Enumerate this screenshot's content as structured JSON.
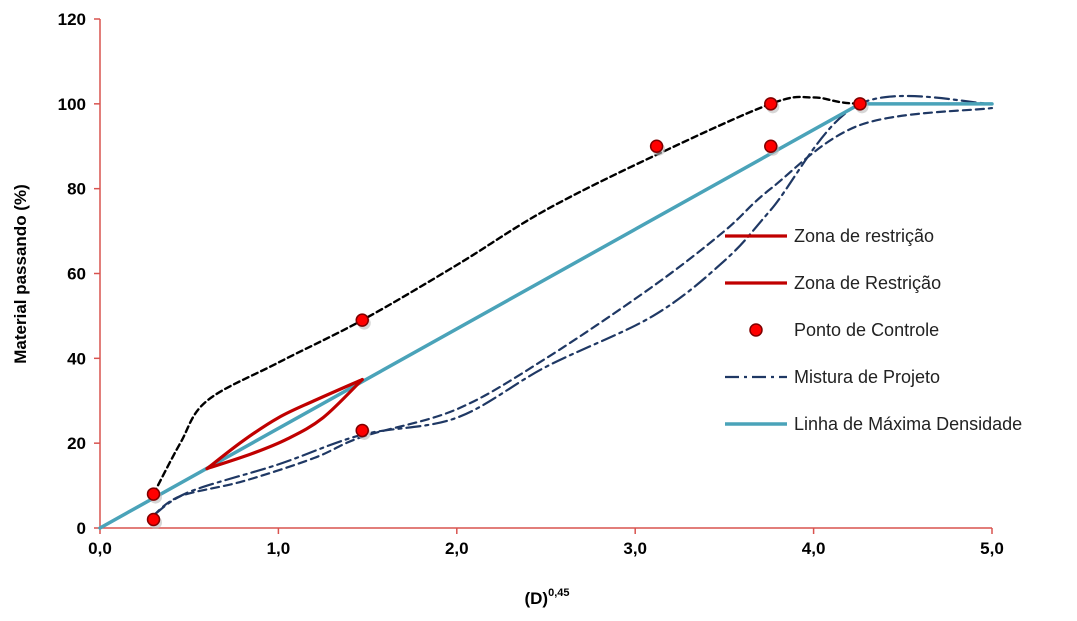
{
  "chart_data": {
    "type": "line",
    "xlabel": "(D)",
    "xlabel_sup": "0,45",
    "ylabel": "Material passando (%)",
    "xlim": [
      0,
      5
    ],
    "ylim": [
      0,
      120
    ],
    "x_ticks": [
      "0,0",
      "1,0",
      "2,0",
      "3,0",
      "4,0",
      "5,0"
    ],
    "y_ticks": [
      "0",
      "20",
      "40",
      "60",
      "80",
      "100",
      "120"
    ],
    "grid": false,
    "legend_position": "right",
    "colors": {
      "axis": "#d9534f",
      "restriction": "#c00000",
      "max_density": "#4aa3b9",
      "mix": "#1f3864",
      "control_fill": "#ff0000",
      "control_stroke": "#800000",
      "envelope": "#000000"
    },
    "series": [
      {
        "name": "Zona de restrição",
        "style": "solid-red",
        "points": [
          [
            0.6,
            14
          ],
          [
            0.8,
            20.5
          ],
          [
            1.0,
            26
          ],
          [
            1.2,
            30
          ],
          [
            1.47,
            35
          ]
        ]
      },
      {
        "name": "Zona de Restrição",
        "style": "solid-red",
        "points": [
          [
            0.6,
            14
          ],
          [
            0.85,
            17.5
          ],
          [
            1.05,
            21
          ],
          [
            1.25,
            26
          ],
          [
            1.47,
            35
          ]
        ]
      },
      {
        "name": "Ponto de Controle",
        "style": "marker",
        "points": [
          [
            0.3,
            2
          ],
          [
            0.3,
            8
          ],
          [
            1.47,
            23
          ],
          [
            1.47,
            49
          ],
          [
            3.12,
            90
          ],
          [
            3.76,
            90
          ],
          [
            3.76,
            100
          ],
          [
            4.26,
            100
          ]
        ]
      },
      {
        "name": "Mistura de Projeto",
        "style": "dashdot",
        "points": [
          [
            0.3,
            3
          ],
          [
            0.5,
            8.5
          ],
          [
            1.0,
            15
          ],
          [
            1.47,
            22
          ],
          [
            2.0,
            26
          ],
          [
            2.5,
            38
          ],
          [
            3.1,
            50
          ],
          [
            3.5,
            63
          ],
          [
            3.76,
            75
          ],
          [
            4.26,
            100
          ],
          [
            5.0,
            100
          ]
        ]
      },
      {
        "name": "Linha de Máxima Densidade",
        "style": "solid-teal",
        "points": [
          [
            0,
            0
          ],
          [
            4.26,
            100
          ],
          [
            5.0,
            100
          ]
        ]
      },
      {
        "style": "dashed-navy",
        "points": [
          [
            0.3,
            3
          ],
          [
            0.45,
            7.5
          ],
          [
            0.8,
            11
          ],
          [
            1.2,
            16.5
          ],
          [
            1.47,
            21.5
          ],
          [
            2.0,
            28
          ],
          [
            2.5,
            40
          ],
          [
            3.1,
            57
          ],
          [
            3.5,
            70
          ],
          [
            3.76,
            80
          ],
          [
            4.26,
            95
          ],
          [
            5.0,
            99
          ]
        ]
      },
      {
        "style": "dashed-black",
        "points": [
          [
            0.3,
            8
          ],
          [
            0.45,
            20
          ],
          [
            0.6,
            30
          ],
          [
            1.0,
            39
          ],
          [
            1.47,
            49
          ],
          [
            2.0,
            62
          ],
          [
            2.5,
            75
          ],
          [
            3.12,
            88
          ],
          [
            3.76,
            100
          ],
          [
            4.0,
            101.5
          ],
          [
            4.26,
            100
          ],
          [
            5.0,
            100
          ]
        ]
      }
    ]
  }
}
